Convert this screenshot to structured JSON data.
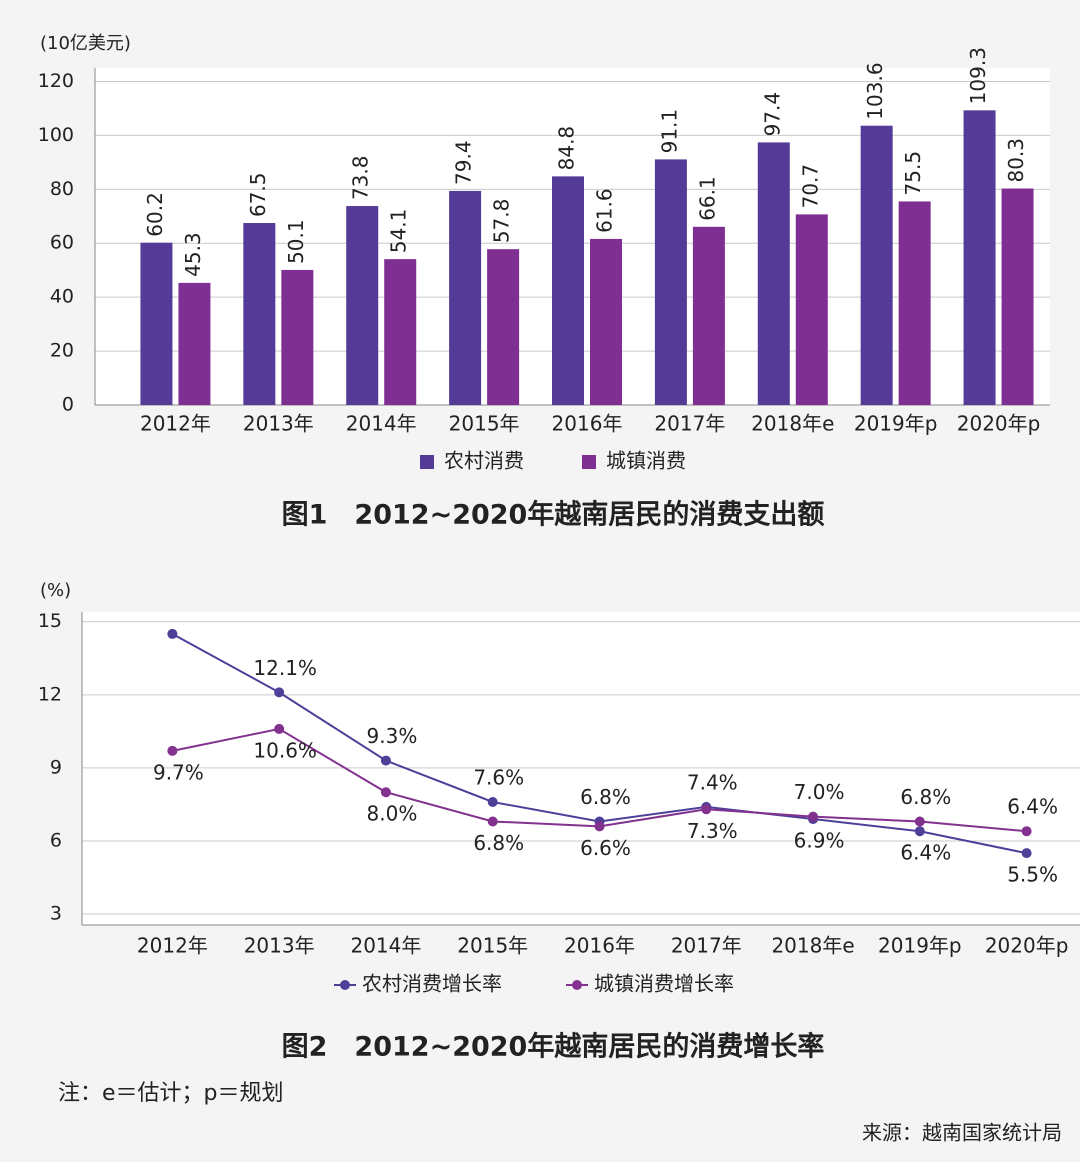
{
  "chart_data": [
    {
      "type": "bar",
      "title": "图1　2012~2020年越南居民的消费支出额",
      "y_label": "(10亿美元)",
      "categories": [
        "2012年",
        "2013年",
        "2014年",
        "2015年",
        "2016年",
        "2017年",
        "2018年e",
        "2019年p",
        "2020年p"
      ],
      "series": [
        {
          "name": "农村消费",
          "color": "#553b98",
          "values": [
            60.2,
            67.5,
            73.8,
            79.4,
            84.8,
            91.1,
            97.4,
            103.6,
            109.3
          ]
        },
        {
          "name": "城镇消费",
          "color": "#7f2f92",
          "values": [
            45.3,
            50.1,
            54.1,
            57.8,
            61.6,
            66.1,
            70.7,
            75.5,
            80.3
          ]
        }
      ],
      "ylim": [
        0,
        125
      ],
      "yticks": [
        0,
        20,
        40,
        60,
        80,
        100,
        120
      ],
      "grid": true,
      "legend": "bottom"
    },
    {
      "type": "line",
      "title": "图2　2012~2020年越南居民的消费增长率",
      "y_label": "(%)",
      "categories": [
        "2012年",
        "2013年",
        "2014年",
        "2015年",
        "2016年",
        "2017年",
        "2018年e",
        "2019年p",
        "2020年p"
      ],
      "series": [
        {
          "name": "农村消费增长率",
          "color": "#4e3f99",
          "values": [
            14.5,
            12.1,
            9.3,
            7.6,
            6.8,
            7.4,
            6.9,
            6.4,
            5.5
          ],
          "value_labels": [
            null,
            "12.1%",
            "9.3%",
            "7.6%",
            "6.8%",
            "7.4%",
            "6.9%",
            "6.4%",
            "5.5%"
          ]
        },
        {
          "name": "城镇消费增长率",
          "color": "#83318f",
          "values": [
            9.7,
            10.6,
            8.0,
            6.8,
            6.6,
            7.3,
            7.0,
            6.8,
            6.4
          ],
          "value_labels": [
            "9.7%",
            "10.6%",
            "8.0%",
            "6.8%",
            "6.6%",
            "7.3%",
            "7.0%",
            "6.8%",
            "6.4%"
          ]
        }
      ],
      "ylim": [
        2.55,
        15.4
      ],
      "yticks": [
        3,
        6,
        9,
        12,
        15
      ],
      "grid": true,
      "legend": "bottom"
    }
  ],
  "note": "注：e＝估计；p＝规划",
  "source": "来源：越南国家统计局"
}
